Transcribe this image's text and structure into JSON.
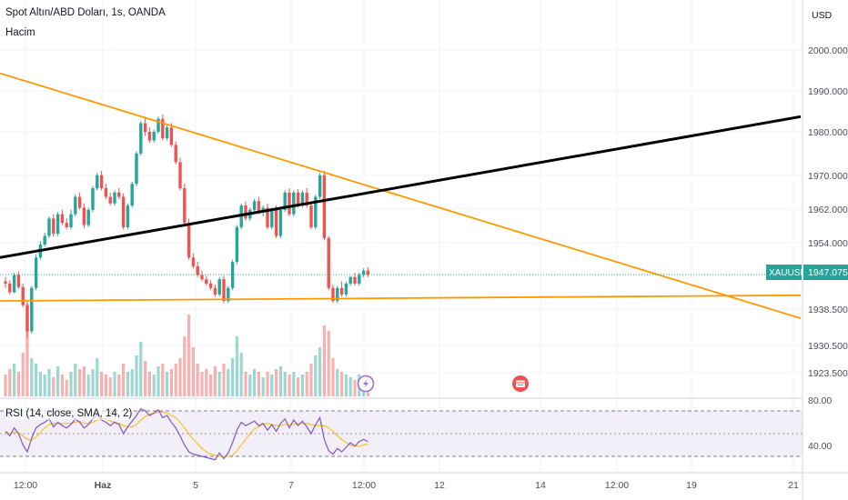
{
  "header": {
    "symbol_title": "Spot Altın/ABD Doları, 1s, OANDA",
    "volume_label": "Hacim"
  },
  "price_axis": {
    "currency": "USD",
    "ticks": [
      "2000.000",
      "1990.000",
      "1980.000",
      "1970.000",
      "1962.000",
      "1954.000",
      "1938.500",
      "1930.500",
      "1923.500"
    ]
  },
  "price_badge": {
    "symbol": "XAUUSD",
    "value": "1947.075",
    "color": "#26a69a"
  },
  "rsi_panel": {
    "label": "RSI (14, close, SMA, 14, 2)",
    "ticks": [
      "80.00",
      "40.00"
    ]
  },
  "time_axis": {
    "ticks": [
      "12:00",
      "Haz",
      "5",
      "7",
      "12:00",
      "12",
      "14",
      "12:00",
      "19",
      "21"
    ]
  },
  "colors": {
    "up": "#26a69a",
    "down": "#ef5350",
    "trendline_orange": "#ff9800",
    "trendline_black": "#000000",
    "rsi_line": "#7e57c2",
    "rsi_ma": "#f7c325"
  },
  "icons": [
    "lightning-icon",
    "calendar-event-icon"
  ],
  "chart_data": {
    "type": "candlestick",
    "symbol": "XAUUSD",
    "last_price": 1947.075,
    "ylim": [
      1918,
      2008
    ],
    "rsi_levels": [
      70,
      50,
      30
    ],
    "trendlines": [
      {
        "color": "orange",
        "from": [
          0,
          1993.5
        ],
        "to": [
          880,
          1937.0
        ]
      },
      {
        "color": "orange",
        "from": [
          0,
          1941.0
        ],
        "to": [
          880,
          1942.3
        ]
      },
      {
        "color": "black",
        "from": [
          0,
          1951.0
        ],
        "to": [
          880,
          1983.5
        ]
      }
    ],
    "candles": [
      [
        1945.5,
        1946.5,
        1944.0,
        1945.0
      ],
      [
        1945.0,
        1945.8,
        1942.5,
        1943.0
      ],
      [
        1943.0,
        1947.5,
        1942.8,
        1947.0
      ],
      [
        1947.0,
        1947.8,
        1943.8,
        1944.2
      ],
      [
        1944.2,
        1945.0,
        1939.5,
        1940.0
      ],
      [
        1940.0,
        1941.0,
        1932.5,
        1934.0
      ],
      [
        1934.0,
        1944.5,
        1933.5,
        1944.0
      ],
      [
        1944.0,
        1951.8,
        1943.5,
        1951.0
      ],
      [
        1951.0,
        1954.8,
        1950.5,
        1954.0
      ],
      [
        1954.0,
        1956.8,
        1953.5,
        1956.0
      ],
      [
        1956.0,
        1960.5,
        1955.5,
        1960.0
      ],
      [
        1960.0,
        1961.0,
        1955.8,
        1956.5
      ],
      [
        1956.5,
        1961.5,
        1956.0,
        1961.0
      ],
      [
        1961.0,
        1962.0,
        1958.5,
        1959.0
      ],
      [
        1959.0,
        1960.0,
        1957.5,
        1958.0
      ],
      [
        1958.0,
        1962.0,
        1957.5,
        1961.0
      ],
      [
        1961.0,
        1965.5,
        1960.5,
        1965.0
      ],
      [
        1965.0,
        1966.0,
        1962.0,
        1962.5
      ],
      [
        1962.5,
        1963.5,
        1957.8,
        1958.5
      ],
      [
        1958.5,
        1962.5,
        1958.0,
        1962.0
      ],
      [
        1962.0,
        1967.5,
        1961.5,
        1967.0
      ],
      [
        1967.0,
        1970.5,
        1966.5,
        1970.0
      ],
      [
        1970.0,
        1971.0,
        1966.5,
        1967.0
      ],
      [
        1967.0,
        1968.0,
        1964.5,
        1965.0
      ],
      [
        1965.0,
        1966.0,
        1963.0,
        1963.5
      ],
      [
        1963.5,
        1966.5,
        1963.0,
        1966.0
      ],
      [
        1966.0,
        1967.0,
        1964.5,
        1965.0
      ],
      [
        1965.0,
        1965.8,
        1957.5,
        1958.0
      ],
      [
        1958.0,
        1963.5,
        1957.5,
        1963.0
      ],
      [
        1963.0,
        1968.5,
        1962.5,
        1968.0
      ],
      [
        1968.0,
        1975.5,
        1967.5,
        1975.0
      ],
      [
        1975.0,
        1982.5,
        1974.5,
        1982.0
      ],
      [
        1982.0,
        1983.5,
        1979.0,
        1980.0
      ],
      [
        1980.0,
        1981.0,
        1977.5,
        1978.0
      ],
      [
        1978.0,
        1980.5,
        1977.5,
        1980.0
      ],
      [
        1980.0,
        1983.5,
        1979.5,
        1983.0
      ],
      [
        1983.0,
        1984.0,
        1978.0,
        1978.5
      ],
      [
        1978.5,
        1981.5,
        1978.0,
        1981.0
      ],
      [
        1981.0,
        1982.0,
        1976.5,
        1977.0
      ],
      [
        1977.0,
        1977.8,
        1972.5,
        1973.0
      ],
      [
        1973.0,
        1974.0,
        1966.5,
        1967.0
      ],
      [
        1967.0,
        1968.0,
        1958.5,
        1959.0
      ],
      [
        1959.0,
        1960.0,
        1950.5,
        1951.0
      ],
      [
        1951.0,
        1952.0,
        1948.5,
        1949.0
      ],
      [
        1949.0,
        1950.0,
        1946.5,
        1947.0
      ],
      [
        1947.0,
        1948.0,
        1945.5,
        1946.0
      ],
      [
        1946.0,
        1946.8,
        1944.5,
        1945.0
      ],
      [
        1945.0,
        1945.8,
        1943.5,
        1944.0
      ],
      [
        1944.0,
        1944.8,
        1942.0,
        1942.5
      ],
      [
        1942.5,
        1946.5,
        1942.0,
        1946.0
      ],
      [
        1946.0,
        1946.8,
        1940.5,
        1941.0
      ],
      [
        1941.0,
        1944.5,
        1940.5,
        1944.0
      ],
      [
        1944.0,
        1950.5,
        1943.5,
        1950.0
      ],
      [
        1950.0,
        1958.5,
        1949.5,
        1958.0
      ],
      [
        1958.0,
        1963.5,
        1957.5,
        1963.0
      ],
      [
        1963.0,
        1964.0,
        1959.5,
        1960.0
      ],
      [
        1960.0,
        1962.5,
        1959.5,
        1962.0
      ],
      [
        1962.0,
        1964.5,
        1961.5,
        1964.0
      ],
      [
        1964.0,
        1965.0,
        1961.0,
        1961.5
      ],
      [
        1961.5,
        1963.0,
        1960.5,
        1962.5
      ],
      [
        1962.5,
        1963.5,
        1957.5,
        1958.0
      ],
      [
        1958.0,
        1962.5,
        1957.5,
        1962.0
      ],
      [
        1962.0,
        1963.0,
        1955.5,
        1956.0
      ],
      [
        1956.0,
        1962.5,
        1955.5,
        1962.0
      ],
      [
        1962.0,
        1966.5,
        1961.5,
        1966.0
      ],
      [
        1966.0,
        1967.0,
        1960.5,
        1961.0
      ],
      [
        1961.0,
        1966.5,
        1960.5,
        1966.0
      ],
      [
        1966.0,
        1966.8,
        1962.5,
        1963.0
      ],
      [
        1963.0,
        1966.5,
        1962.5,
        1966.0
      ],
      [
        1966.0,
        1967.0,
        1962.5,
        1963.0
      ],
      [
        1963.0,
        1964.0,
        1957.5,
        1958.0
      ],
      [
        1958.0,
        1965.5,
        1957.5,
        1965.0
      ],
      [
        1965.0,
        1970.5,
        1964.5,
        1970.0
      ],
      [
        1970.0,
        1971.0,
        1955.0,
        1955.5
      ],
      [
        1955.5,
        1956.0,
        1943.5,
        1944.0
      ],
      [
        1944.0,
        1944.8,
        1940.5,
        1941.0
      ],
      [
        1941.0,
        1944.5,
        1940.5,
        1944.0
      ],
      [
        1944.0,
        1945.5,
        1942.0,
        1942.5
      ],
      [
        1942.5,
        1945.5,
        1942.0,
        1945.0
      ],
      [
        1945.0,
        1946.8,
        1944.5,
        1946.5
      ],
      [
        1946.5,
        1947.5,
        1944.5,
        1945.0
      ],
      [
        1945.0,
        1947.5,
        1944.5,
        1947.0
      ],
      [
        1947.0,
        1948.5,
        1946.5,
        1948.0
      ],
      [
        1948.0,
        1948.8,
        1946.5,
        1947.0
      ]
    ],
    "volume": [
      8,
      10,
      12,
      9,
      16,
      34,
      14,
      12,
      9,
      8,
      10,
      7,
      11,
      8,
      6,
      9,
      12,
      10,
      11,
      8,
      10,
      14,
      9,
      8,
      7,
      9,
      8,
      12,
      9,
      10,
      15,
      20,
      13,
      9,
      8,
      11,
      12,
      9,
      10,
      12,
      14,
      22,
      30,
      18,
      12,
      9,
      10,
      8,
      11,
      9,
      12,
      10,
      14,
      22,
      16,
      9,
      8,
      10,
      9,
      7,
      9,
      8,
      10,
      11,
      9,
      8,
      9,
      7,
      8,
      9,
      12,
      15,
      18,
      26,
      24,
      14,
      10,
      9,
      8,
      7,
      6,
      8,
      7,
      5
    ],
    "rsi": [
      52,
      48,
      55,
      50,
      40,
      34,
      46,
      55,
      58,
      60,
      63,
      56,
      60,
      57,
      55,
      58,
      63,
      60,
      55,
      58,
      63,
      67,
      62,
      60,
      57,
      60,
      58,
      50,
      56,
      61,
      66,
      72,
      70,
      66,
      68,
      71,
      64,
      66,
      60,
      55,
      48,
      40,
      34,
      32,
      31,
      30,
      29,
      28,
      27,
      33,
      28,
      33,
      42,
      53,
      60,
      57,
      59,
      61,
      57,
      59,
      53,
      58,
      52,
      59,
      63,
      55,
      62,
      57,
      61,
      56,
      50,
      58,
      64,
      45,
      35,
      32,
      37,
      34,
      38,
      42,
      39,
      43,
      45,
      43
    ],
    "rsi_ma": [
      52,
      50,
      51,
      51,
      48,
      45,
      44,
      47,
      51,
      55,
      58,
      59,
      59,
      59,
      59,
      59,
      60,
      61,
      59,
      59,
      60,
      62,
      63,
      63,
      61,
      60,
      59,
      57,
      56,
      56,
      58,
      62,
      65,
      67,
      68,
      69,
      69,
      68,
      66,
      64,
      60,
      55,
      50,
      45,
      41,
      37,
      34,
      32,
      31,
      30,
      30,
      30,
      31,
      35,
      40,
      45,
      50,
      54,
      56,
      58,
      59,
      58,
      57,
      57,
      58,
      58,
      58,
      59,
      59,
      59,
      58,
      57,
      57,
      57,
      55,
      52,
      48,
      45,
      42,
      40,
      39,
      39,
      40,
      41
    ]
  }
}
